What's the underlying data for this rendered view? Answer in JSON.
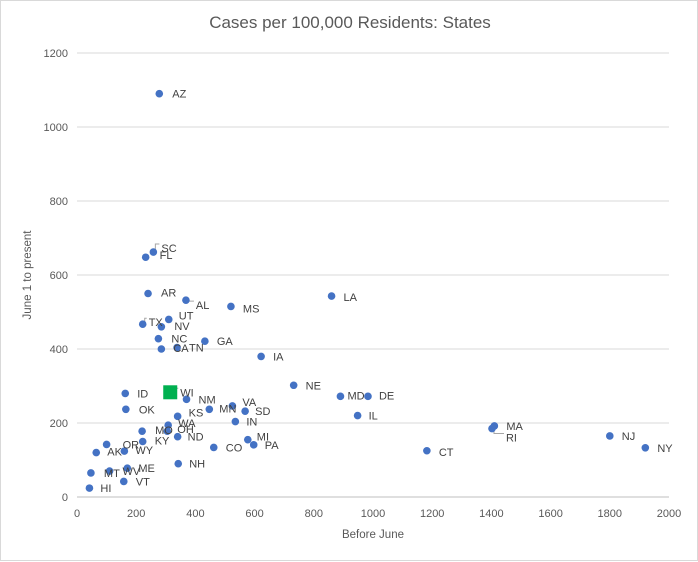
{
  "chart_data": {
    "type": "scatter",
    "title": "Cases per 100,000 Residents: States",
    "xlabel": "Before June",
    "ylabel": "June 1 to present",
    "xlim": [
      0,
      2000
    ],
    "ylim": [
      0,
      1200
    ],
    "x_ticks": [
      "0",
      "200",
      "400",
      "600",
      "800",
      "1000",
      "1200",
      "1400",
      "1600",
      "1800",
      "2000"
    ],
    "y_ticks": [
      "0",
      "200",
      "400",
      "600",
      "800",
      "1000",
      "1200"
    ],
    "grid": "horizontal",
    "point_color": "#4472c4",
    "highlight_color": "#00b050",
    "points": [
      {
        "label": "AZ",
        "x": 278,
        "y": 1090
      },
      {
        "label": "SC",
        "x": 258,
        "y": 662
      },
      {
        "label": "FL",
        "x": 232,
        "y": 648
      },
      {
        "label": "AR",
        "x": 240,
        "y": 550
      },
      {
        "label": "AL",
        "x": 368,
        "y": 532
      },
      {
        "label": "MS",
        "x": 520,
        "y": 515
      },
      {
        "label": "LA",
        "x": 860,
        "y": 543
      },
      {
        "label": "UT",
        "x": 310,
        "y": 480
      },
      {
        "label": "TX",
        "x": 222,
        "y": 467
      },
      {
        "label": "NV",
        "x": 285,
        "y": 460
      },
      {
        "label": "NC",
        "x": 275,
        "y": 428
      },
      {
        "label": "GA",
        "x": 432,
        "y": 421
      },
      {
        "label": "CA",
        "x": 285,
        "y": 400
      },
      {
        "label": "TN",
        "x": 338,
        "y": 404
      },
      {
        "label": "IA",
        "x": 622,
        "y": 380
      },
      {
        "label": "NE",
        "x": 732,
        "y": 302
      },
      {
        "label": "MD",
        "x": 890,
        "y": 272
      },
      {
        "label": "DE",
        "x": 983,
        "y": 272
      },
      {
        "label": "ID",
        "x": 163,
        "y": 280
      },
      {
        "label": "WI",
        "x": 315,
        "y": 283,
        "highlight": true
      },
      {
        "label": "NM",
        "x": 370,
        "y": 264
      },
      {
        "label": "OK",
        "x": 165,
        "y": 237
      },
      {
        "label": "VA",
        "x": 525,
        "y": 246
      },
      {
        "label": "MN",
        "x": 447,
        "y": 237
      },
      {
        "label": "SD",
        "x": 568,
        "y": 232
      },
      {
        "label": "IL",
        "x": 948,
        "y": 220
      },
      {
        "label": "KS",
        "x": 340,
        "y": 218
      },
      {
        "label": "IN",
        "x": 535,
        "y": 204
      },
      {
        "label": "WA",
        "x": 308,
        "y": 194
      },
      {
        "label": "MO",
        "x": 220,
        "y": 178
      },
      {
        "label": "OH",
        "x": 305,
        "y": 178
      },
      {
        "label": "ND",
        "x": 340,
        "y": 163
      },
      {
        "label": "KY",
        "x": 222,
        "y": 150
      },
      {
        "label": "MI",
        "x": 577,
        "y": 155
      },
      {
        "label": "PA",
        "x": 597,
        "y": 141
      },
      {
        "label": "CO",
        "x": 462,
        "y": 134
      },
      {
        "label": "OR",
        "x": 100,
        "y": 142
      },
      {
        "label": "WY",
        "x": 160,
        "y": 124
      },
      {
        "label": "AK",
        "x": 65,
        "y": 120
      },
      {
        "label": "NH",
        "x": 342,
        "y": 90
      },
      {
        "label": "ME",
        "x": 170,
        "y": 78
      },
      {
        "label": "WV",
        "x": 110,
        "y": 70
      },
      {
        "label": "MT",
        "x": 47,
        "y": 65
      },
      {
        "label": "VT",
        "x": 158,
        "y": 42
      },
      {
        "label": "HI",
        "x": 42,
        "y": 24
      },
      {
        "label": "CT",
        "x": 1182,
        "y": 125
      },
      {
        "label": "MA",
        "x": 1410,
        "y": 192
      },
      {
        "label": "RI",
        "x": 1402,
        "y": 185
      },
      {
        "label": "NJ",
        "x": 1800,
        "y": 165
      },
      {
        "label": "NY",
        "x": 1920,
        "y": 133
      }
    ]
  }
}
